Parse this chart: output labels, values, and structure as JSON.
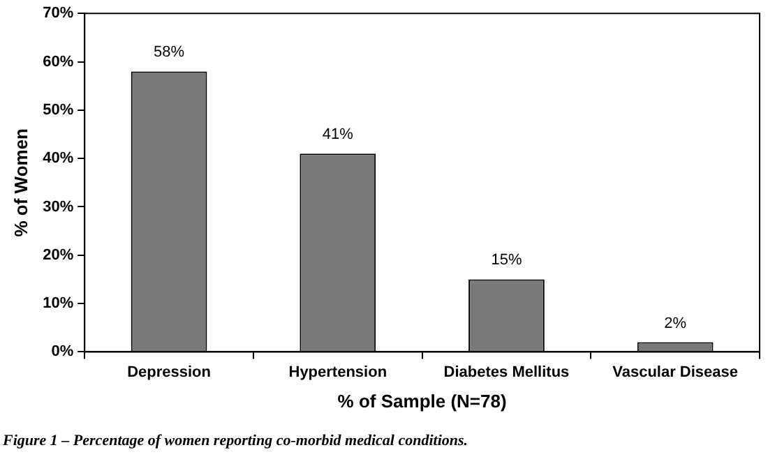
{
  "chart_data": {
    "type": "bar",
    "categories": [
      "Depression",
      "Hypertension",
      "Diabetes Mellitus",
      "Vascular Disease"
    ],
    "values": [
      58,
      41,
      15,
      2
    ],
    "color": "#7a7a7a",
    "value_labels": [
      "58%",
      "41%",
      "15%",
      "2%"
    ],
    "xlabel": "% of Sample (N=78)",
    "ylabel": "% of Women",
    "ylim": [
      0,
      70
    ],
    "yticks": [
      {
        "value": 0,
        "label": "0%"
      },
      {
        "value": 10,
        "label": "10%"
      },
      {
        "value": 20,
        "label": "20%"
      },
      {
        "value": 30,
        "label": "30%"
      },
      {
        "value": 40,
        "label": "40%"
      },
      {
        "value": 50,
        "label": "50%"
      },
      {
        "value": 60,
        "label": "60%"
      },
      {
        "value": 70,
        "label": "70%"
      }
    ],
    "grid": false,
    "legend": false,
    "annotations": [
      "Figure 1 – Percentage of women reporting co-morbid medical conditions."
    ]
  }
}
